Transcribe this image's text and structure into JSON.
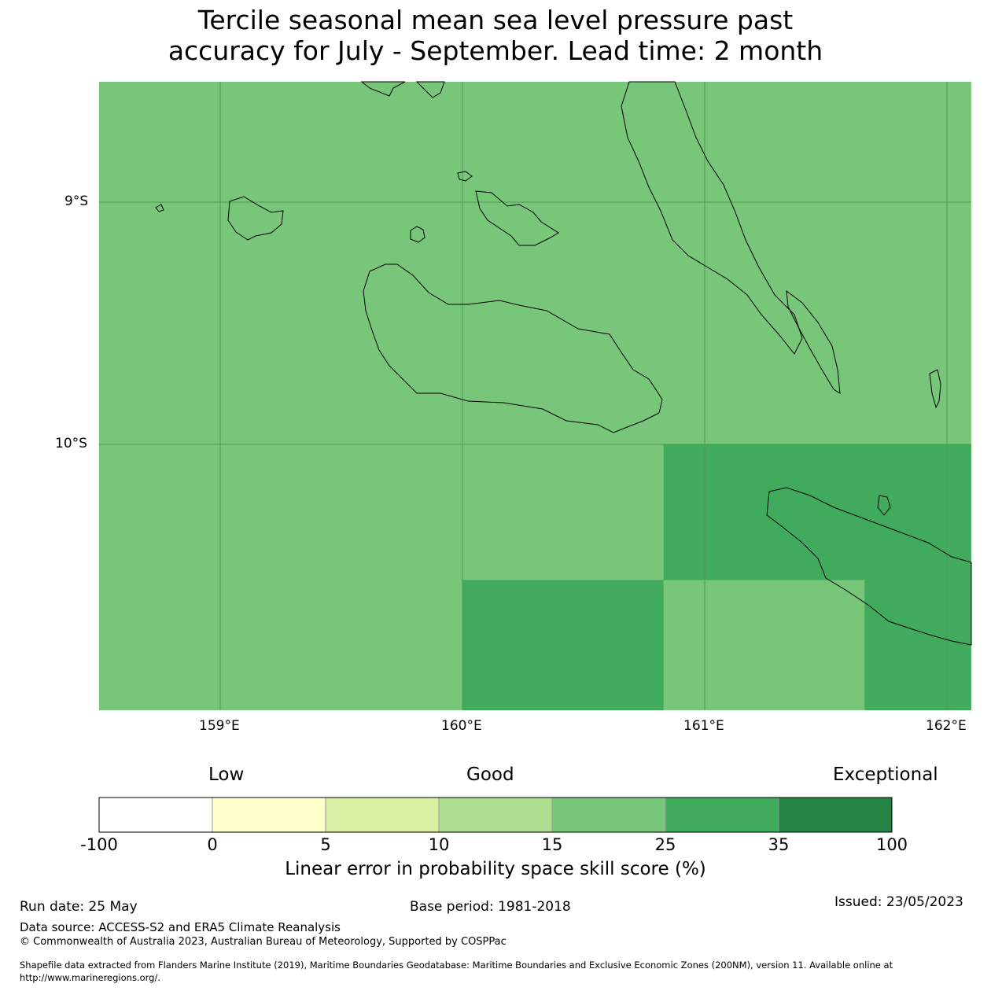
{
  "title_line1": "Tercile seasonal mean sea level pressure past",
  "title_line2": "accuracy for July - September. Lead time: 2 month",
  "map": {
    "lat_labels": [
      "9°S",
      "10°S"
    ],
    "lon_labels": [
      "159°E",
      "160°E",
      "161°E",
      "162°E"
    ],
    "bounds": {
      "lon_min": 158.5,
      "lon_max": 162.1,
      "lat_min": -11.1,
      "lat_max": -8.5
    },
    "cells": [
      {
        "lon_from": 158.5,
        "lon_to": 162.1,
        "lat_from": -11.1,
        "lat_to": -8.5,
        "category": "15-25"
      },
      {
        "lon_from": 160.83,
        "lon_to": 162.1,
        "lat_from": -10.56,
        "lat_to": -10.0,
        "category": "25-35"
      },
      {
        "lon_from": 160.0,
        "lon_to": 160.83,
        "lat_from": -11.1,
        "lat_to": -10.56,
        "category": "25-35"
      },
      {
        "lon_from": 161.66,
        "lon_to": 162.1,
        "lat_from": -11.1,
        "lat_to": -10.56,
        "category": "25-35"
      }
    ]
  },
  "colorbar": {
    "categories": [
      "Low",
      "Good",
      "Exceptional"
    ],
    "ticks": [
      "-100",
      "0",
      "5",
      "10",
      "15",
      "25",
      "35",
      "100"
    ],
    "colors": [
      "#ffffff",
      "#ffffcc",
      "#d9f0a3",
      "#addd8e",
      "#78c679",
      "#41ab5d",
      "#238443"
    ],
    "label": "Linear error in probability space skill score (%)"
  },
  "footer": {
    "run_date": "Run date: 25 May",
    "base_period": "Base period: 1981-2018",
    "issued": "Issued: 23/05/2023",
    "data_source": "Data source: ACCESS-S2 and ERA5 Climate Reanalysis",
    "copyright": "© Commonwealth of Australia 2023, Australian Bureau of Meteorology, Supported by COSPPac",
    "shapefile_line1": "Shapefile data extracted from Flanders Marine Institute (2019), Maritime Boundaries Geodatabase: Maritime Boundaries and Exclusive Economic Zones (200NM), version 11. Available online at",
    "shapefile_line2": "http://www.marineregions.org/."
  }
}
